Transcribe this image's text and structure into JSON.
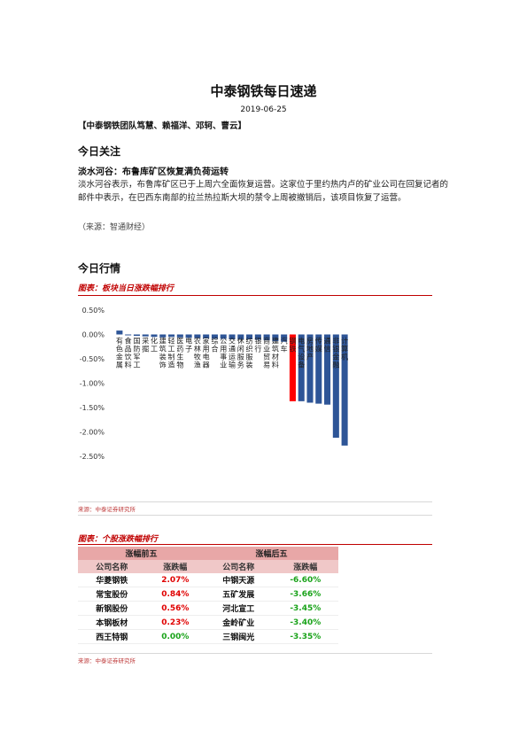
{
  "header": {
    "title": "中泰钢铁每日速递",
    "date": "2019-06-25",
    "team": "【中泰钢铁团队笃慧、赖福洋、邓轲、曹云】"
  },
  "focus": {
    "heading": "今日关注",
    "headline": "淡水河谷：布鲁库矿区恢复满负荷运转",
    "body": "淡水河谷表示，布鲁库矿区已于上周六全面恢复运营。这家位于里约热内卢的矿业公司在回复记者的邮件中表示，在巴西东南部的拉兰热拉斯大坝的禁令上周被撤销后，该项目恢复了运营。",
    "source": "（来源：智通财经）"
  },
  "market": {
    "heading": "今日行情",
    "chart_caption": "图表：板块当日涨跌幅排行",
    "chart_source": "来源：中泰证券研究所",
    "table_caption": "图表：个股涨跌幅排行",
    "table_source": "来源：中泰证券研究所"
  },
  "chart_data": {
    "type": "bar",
    "title": "",
    "xlabel": "",
    "ylabel": "",
    "ylim": [
      -0.025,
      0.005
    ],
    "yticks": [
      "0.50%",
      "0.00%",
      "-0.50%",
      "-1.00%",
      "-1.50%",
      "-2.00%",
      "-2.50%"
    ],
    "ytick_values": [
      0.005,
      0.0,
      -0.005,
      -0.01,
      -0.015,
      -0.02,
      -0.025
    ],
    "categories": [
      "有色金属",
      "食品饮料",
      "国防军工",
      "采掘",
      "化工",
      "建筑装饰",
      "轻工制造",
      "医药生物",
      "电子",
      "农林牧渔",
      "家用电器",
      "综合",
      "公用事业",
      "交通运输",
      "休闲服务",
      "纺织服装",
      "银行",
      "商业贸易",
      "建筑材料",
      "汽车",
      "钢铁",
      "电气设备",
      "房地产",
      "传媒",
      "通信",
      "非银金融",
      "计算机"
    ],
    "values": [
      0.0008,
      -0.0001,
      -0.0003,
      -0.0004,
      -0.0005,
      -0.0006,
      -0.0005,
      -0.0006,
      -0.0007,
      -0.0007,
      -0.0008,
      -0.0009,
      -0.0009,
      -0.001,
      -0.001,
      -0.001,
      -0.0011,
      -0.0012,
      -0.0014,
      -0.0015,
      -0.0137,
      -0.0137,
      -0.014,
      -0.0142,
      -0.0144,
      -0.0212,
      -0.0228
    ],
    "highlight_category": "钢铁",
    "bar_color": "#2e5597",
    "highlight_color": "#ff0000"
  },
  "stock_table": {
    "groups": [
      "涨幅前五",
      "涨幅后五"
    ],
    "headers": [
      "公司名称",
      "涨跌幅",
      "公司名称",
      "涨跌幅"
    ],
    "rows": [
      [
        "华菱钢铁",
        "2.07%",
        "中钢天源",
        "-6.60%"
      ],
      [
        "常宝股份",
        "0.84%",
        "五矿发展",
        "-3.66%"
      ],
      [
        "新钢股份",
        "0.56%",
        "河北宣工",
        "-3.45%"
      ],
      [
        "本钢板材",
        "0.23%",
        "金岭矿业",
        "-3.40%"
      ],
      [
        "西王特钢",
        "0.00%",
        "三钢闽光",
        "-3.35%"
      ]
    ],
    "colors": {
      "up": "#e00000",
      "down": "#1aa31a",
      "group_bg": "#e8a7a7",
      "header_bg": "#f0c8c8"
    }
  }
}
